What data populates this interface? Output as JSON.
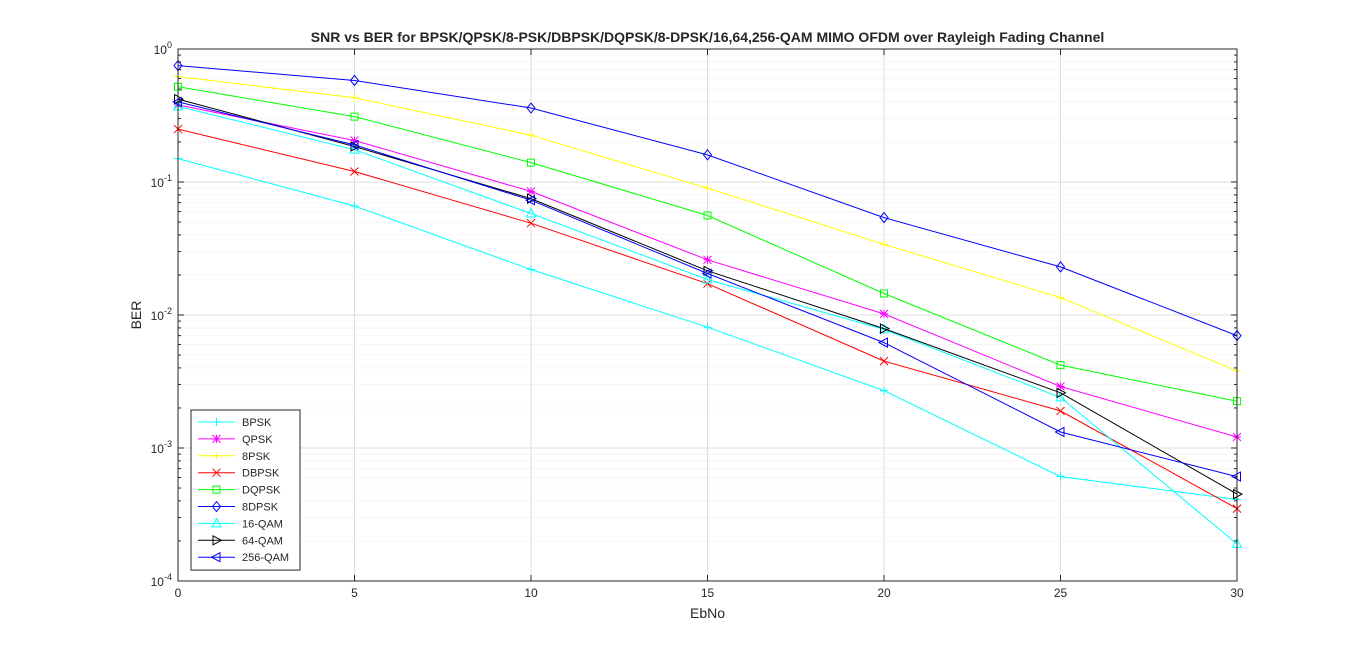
{
  "chart_data": {
    "type": "line",
    "title": "SNR vs BER for BPSK/QPSK/8-PSK/DBPSK/DQPSK/8-DPSK/16,64,256-QAM MIMO OFDM over Rayleigh Fading Channel",
    "xlabel": "EbNo",
    "ylabel": "BER",
    "xlim": [
      0,
      30
    ],
    "ylim": [
      0.0001,
      1
    ],
    "yscale": "log",
    "grid": true,
    "legend_position": "bottom-left",
    "x_ticks": [
      0,
      5,
      10,
      15,
      20,
      25,
      30
    ],
    "y_ticks": [
      {
        "base": "10",
        "exp": "0"
      },
      {
        "base": "10",
        "exp": "-1"
      },
      {
        "base": "10",
        "exp": "-2"
      },
      {
        "base": "10",
        "exp": "-3"
      },
      {
        "base": "10",
        "exp": "-4"
      }
    ],
    "x": [
      0,
      5,
      10,
      15,
      20,
      25,
      30
    ],
    "series": [
      {
        "name": "BPSK",
        "color": "#00ffff",
        "marker": "plus",
        "values": [
          0.15,
          0.066,
          0.022,
          0.0081,
          0.0027,
          0.00061,
          0.00041
        ]
      },
      {
        "name": "QPSK",
        "color": "#ff00ff",
        "marker": "asterisk",
        "values": [
          0.38,
          0.205,
          0.085,
          0.026,
          0.0102,
          0.0029,
          0.00121
        ]
      },
      {
        "name": "8PSK",
        "color": "#ffff00",
        "marker": "plus",
        "values": [
          0.62,
          0.43,
          0.225,
          0.09,
          0.034,
          0.0135,
          0.0038
        ]
      },
      {
        "name": "DBPSK",
        "color": "#ff0000",
        "marker": "x",
        "values": [
          0.25,
          0.12,
          0.049,
          0.0172,
          0.0045,
          0.0019,
          0.00035
        ]
      },
      {
        "name": "DQPSK",
        "color": "#00ff00",
        "marker": "square",
        "values": [
          0.52,
          0.31,
          0.14,
          0.056,
          0.0145,
          0.0042,
          0.00225
        ]
      },
      {
        "name": "8DPSK",
        "color": "#0000ff",
        "marker": "diamond",
        "values": [
          0.75,
          0.58,
          0.36,
          0.16,
          0.054,
          0.023,
          0.007
        ]
      },
      {
        "name": "16-QAM",
        "color": "#00ffff",
        "marker": "triangle-up",
        "values": [
          0.37,
          0.175,
          0.058,
          0.0185,
          0.0078,
          0.0024,
          0.00019
        ]
      },
      {
        "name": "64-QAM",
        "color": "#000000",
        "marker": "triangle-right",
        "values": [
          0.42,
          0.185,
          0.075,
          0.0215,
          0.0079,
          0.0026,
          0.00045
        ]
      },
      {
        "name": "256-QAM",
        "color": "#0000ff",
        "marker": "triangle-left",
        "values": [
          0.4,
          0.19,
          0.073,
          0.0205,
          0.0062,
          0.00132,
          0.00061
        ]
      }
    ]
  }
}
